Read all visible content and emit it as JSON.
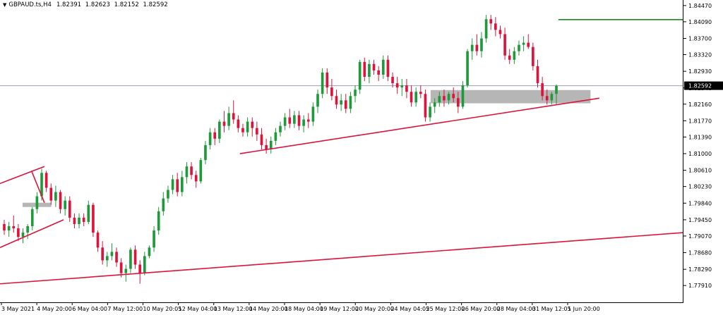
{
  "header": {
    "dropdown_icon": "triangle-down-icon",
    "symbol": "GBPAUD.ts,H4",
    "open": "1.82391",
    "high": "1.82623",
    "low": "1.82152",
    "close": "1.82592"
  },
  "colors": {
    "bull": "#1e9a3a",
    "bear": "#dc143c",
    "trendline": "#dc143c",
    "zone": "#a9a9a9",
    "resistance": "#1a8a1a",
    "price_line": "#9aa0b4",
    "price_tag_bg": "#000000"
  },
  "chart_data": {
    "type": "candlestick",
    "title": "GBPAUD.ts,H4",
    "ohlc_header": {
      "open": 1.82391,
      "high": 1.82623,
      "low": 1.82152,
      "close": 1.82592
    },
    "current_price": 1.82592,
    "current_price_label": "1.82592",
    "ylim": [
      1.775,
      1.846
    ],
    "y_ticks": [
      "1.84470",
      "1.84090",
      "1.83700",
      "1.83320",
      "1.82930",
      "1.82540",
      "1.82160",
      "1.81770",
      "1.81390",
      "1.81000",
      "1.80610",
      "1.80230",
      "1.79840",
      "1.79450",
      "1.79070",
      "1.78680",
      "1.78290",
      "1.77910"
    ],
    "x_ticks": [
      "3 May 2021",
      "4 May 20:00",
      "6 May 04:00",
      "7 May 12:00",
      "10 May 20:05",
      "12 May 04:00",
      "13 May 12:00",
      "14 May 20:00",
      "18 May 04:00",
      "19 May 12:00",
      "20 May 20:00",
      "24 May 04:05",
      "25 May 12:00",
      "26 May 20:00",
      "28 May 04:00",
      "31 May 12:05",
      "1 Jun 20:00"
    ],
    "candles": [
      [
        1.7935,
        1.7945,
        1.791,
        1.792
      ],
      [
        1.792,
        1.794,
        1.7905,
        1.793
      ],
      [
        1.793,
        1.7955,
        1.7915,
        1.7925
      ],
      [
        1.7925,
        1.7935,
        1.7895,
        1.7905
      ],
      [
        1.7905,
        1.7925,
        1.789,
        1.7915
      ],
      [
        1.7915,
        1.7935,
        1.79,
        1.793
      ],
      [
        1.793,
        1.7975,
        1.792,
        1.797
      ],
      [
        1.797,
        1.801,
        1.796,
        1.8
      ],
      [
        1.8,
        1.8065,
        1.799,
        1.8055
      ],
      [
        1.8055,
        1.806,
        1.801,
        1.802
      ],
      [
        1.802,
        1.803,
        1.798,
        1.799
      ],
      [
        1.799,
        1.8025,
        1.7975,
        1.801
      ],
      [
        1.801,
        1.8015,
        1.796,
        1.797
      ],
      [
        1.797,
        1.8,
        1.7955,
        1.799
      ],
      [
        1.799,
        1.8,
        1.794,
        1.795
      ],
      [
        1.795,
        1.796,
        1.7925,
        1.7935
      ],
      [
        1.7935,
        1.796,
        1.7925,
        1.795
      ],
      [
        1.795,
        1.796,
        1.793,
        1.794
      ],
      [
        1.794,
        1.799,
        1.7935,
        1.798
      ],
      [
        1.798,
        1.7985,
        1.7905,
        1.7915
      ],
      [
        1.7915,
        1.792,
        1.787,
        1.788
      ],
      [
        1.788,
        1.7895,
        1.784,
        1.785
      ],
      [
        1.785,
        1.787,
        1.7835,
        1.786
      ],
      [
        1.786,
        1.789,
        1.785,
        1.787
      ],
      [
        1.787,
        1.788,
        1.7835,
        1.7845
      ],
      [
        1.7845,
        1.7855,
        1.781,
        1.782
      ],
      [
        1.782,
        1.784,
        1.78,
        1.783
      ],
      [
        1.783,
        1.788,
        1.782,
        1.7875
      ],
      [
        1.7875,
        1.7885,
        1.783,
        1.784
      ],
      [
        1.784,
        1.785,
        1.7795,
        1.782
      ],
      [
        1.782,
        1.787,
        1.7815,
        1.786
      ],
      [
        1.786,
        1.7885,
        1.7855,
        1.788
      ],
      [
        1.788,
        1.793,
        1.787,
        1.792
      ],
      [
        1.792,
        1.7975,
        1.791,
        1.7965
      ],
      [
        1.7965,
        1.801,
        1.7955,
        1.7995
      ],
      [
        1.7995,
        1.8025,
        1.7985,
        1.8015
      ],
      [
        1.8015,
        1.805,
        1.8005,
        1.804
      ],
      [
        1.804,
        1.8055,
        1.8,
        1.801
      ],
      [
        1.801,
        1.806,
        1.8,
        1.8045
      ],
      [
        1.8045,
        1.808,
        1.803,
        1.807
      ],
      [
        1.807,
        1.808,
        1.804,
        1.805
      ],
      [
        1.805,
        1.806,
        1.802,
        1.8035
      ],
      [
        1.8035,
        1.809,
        1.803,
        1.8085
      ],
      [
        1.8085,
        1.813,
        1.8075,
        1.812
      ],
      [
        1.812,
        1.816,
        1.811,
        1.815
      ],
      [
        1.815,
        1.816,
        1.812,
        1.8135
      ],
      [
        1.8135,
        1.818,
        1.8125,
        1.8175
      ],
      [
        1.8175,
        1.82,
        1.815,
        1.8165
      ],
      [
        1.8165,
        1.821,
        1.8155,
        1.8195
      ],
      [
        1.8195,
        1.8225,
        1.817,
        1.818
      ],
      [
        1.818,
        1.819,
        1.815,
        1.816
      ],
      [
        1.816,
        1.817,
        1.814,
        1.815
      ],
      [
        1.815,
        1.8185,
        1.814,
        1.8175
      ],
      [
        1.8175,
        1.8185,
        1.814,
        1.816
      ],
      [
        1.816,
        1.8175,
        1.813,
        1.8145
      ],
      [
        1.8145,
        1.816,
        1.811,
        1.812
      ],
      [
        1.812,
        1.8135,
        1.81,
        1.811
      ],
      [
        1.811,
        1.814,
        1.81,
        1.813
      ],
      [
        1.813,
        1.816,
        1.812,
        1.815
      ],
      [
        1.815,
        1.8175,
        1.814,
        1.8165
      ],
      [
        1.8165,
        1.8195,
        1.8155,
        1.8185
      ],
      [
        1.8185,
        1.8205,
        1.816,
        1.817
      ],
      [
        1.817,
        1.82,
        1.816,
        1.819
      ],
      [
        1.819,
        1.82,
        1.8155,
        1.8165
      ],
      [
        1.8165,
        1.819,
        1.815,
        1.818
      ],
      [
        1.818,
        1.8195,
        1.816,
        1.8175
      ],
      [
        1.8175,
        1.822,
        1.8165,
        1.821
      ],
      [
        1.821,
        1.825,
        1.8195,
        1.824
      ],
      [
        1.824,
        1.83,
        1.823,
        1.829
      ],
      [
        1.829,
        1.83,
        1.824,
        1.8255
      ],
      [
        1.8255,
        1.8275,
        1.8225,
        1.8235
      ],
      [
        1.8235,
        1.825,
        1.8205,
        1.8215
      ],
      [
        1.8215,
        1.824,
        1.82,
        1.8225
      ],
      [
        1.8225,
        1.824,
        1.8195,
        1.8205
      ],
      [
        1.8205,
        1.8245,
        1.8195,
        1.8235
      ],
      [
        1.8235,
        1.826,
        1.822,
        1.825
      ],
      [
        1.825,
        1.832,
        1.824,
        1.8315
      ],
      [
        1.8315,
        1.8325,
        1.827,
        1.828
      ],
      [
        1.828,
        1.832,
        1.8265,
        1.831
      ],
      [
        1.831,
        1.832,
        1.8285,
        1.8295
      ],
      [
        1.8295,
        1.8305,
        1.827,
        1.8285
      ],
      [
        1.8285,
        1.833,
        1.8275,
        1.832
      ],
      [
        1.832,
        1.833,
        1.827,
        1.828
      ],
      [
        1.828,
        1.829,
        1.8255,
        1.8265
      ],
      [
        1.8265,
        1.828,
        1.824,
        1.8255
      ],
      [
        1.8255,
        1.8275,
        1.8235,
        1.826
      ],
      [
        1.826,
        1.8275,
        1.823,
        1.8245
      ],
      [
        1.8245,
        1.826,
        1.821,
        1.822
      ],
      [
        1.822,
        1.8255,
        1.821,
        1.8245
      ],
      [
        1.8245,
        1.826,
        1.823,
        1.824
      ],
      [
        1.824,
        1.825,
        1.8175,
        1.8185
      ],
      [
        1.8185,
        1.822,
        1.8175,
        1.821
      ],
      [
        1.821,
        1.823,
        1.8195,
        1.822
      ],
      [
        1.822,
        1.8245,
        1.821,
        1.8235
      ],
      [
        1.8235,
        1.825,
        1.821,
        1.8225
      ],
      [
        1.8225,
        1.8245,
        1.8215,
        1.824
      ],
      [
        1.824,
        1.8255,
        1.822,
        1.823
      ],
      [
        1.823,
        1.8245,
        1.8195,
        1.821
      ],
      [
        1.821,
        1.827,
        1.8205,
        1.826
      ],
      [
        1.826,
        1.8345,
        1.8255,
        1.834
      ],
      [
        1.834,
        1.837,
        1.832,
        1.8355
      ],
      [
        1.8355,
        1.838,
        1.833,
        1.834
      ],
      [
        1.834,
        1.8385,
        1.8325,
        1.837
      ],
      [
        1.837,
        1.8425,
        1.836,
        1.8415
      ],
      [
        1.8415,
        1.8425,
        1.839,
        1.8405
      ],
      [
        1.8405,
        1.842,
        1.8375,
        1.839
      ],
      [
        1.839,
        1.84,
        1.837,
        1.838
      ],
      [
        1.838,
        1.8395,
        1.832,
        1.833
      ],
      [
        1.833,
        1.8345,
        1.831,
        1.832
      ],
      [
        1.832,
        1.835,
        1.831,
        1.834
      ],
      [
        1.834,
        1.8365,
        1.833,
        1.8355
      ],
      [
        1.8355,
        1.8375,
        1.834,
        1.836
      ],
      [
        1.836,
        1.838,
        1.8345,
        1.835
      ],
      [
        1.835,
        1.836,
        1.8295,
        1.8305
      ],
      [
        1.8305,
        1.832,
        1.8255,
        1.8265
      ],
      [
        1.8265,
        1.828,
        1.8225,
        1.8235
      ],
      [
        1.8235,
        1.825,
        1.8215,
        1.8225
      ],
      [
        1.8225,
        1.8245,
        1.8215,
        1.824
      ],
      [
        1.824,
        1.8262,
        1.8215,
        1.8259
      ]
    ],
    "zones": [
      {
        "name": "small-support-zone",
        "from": 1.7975,
        "to": 1.7985,
        "x0": 0.033,
        "x1": 0.075
      },
      {
        "name": "support-zone",
        "from": 1.8218,
        "to": 1.8249,
        "x0": 0.63,
        "x1": 0.864
      }
    ],
    "trendlines": [
      {
        "name": "rising-support-line",
        "points": [
          [
            0.351,
            1.81
          ],
          [
            0.877,
            1.823
          ]
        ]
      },
      {
        "name": "lower-trendline",
        "points": [
          [
            0.0,
            1.7795
          ],
          [
            1.0,
            1.7915
          ]
        ]
      },
      {
        "name": "channel-upper-line",
        "points": [
          [
            0.0,
            1.803
          ],
          [
            0.065,
            1.807
          ]
        ]
      },
      {
        "name": "channel-lower-line",
        "points": [
          [
            0.0,
            1.788
          ],
          [
            0.093,
            1.7945
          ]
        ]
      },
      {
        "name": "flag-pole-line",
        "points": [
          [
            0.046,
            1.806
          ],
          [
            0.065,
            1.7985
          ]
        ]
      }
    ],
    "resistance_level": {
      "value": 1.8414,
      "x0": 0.817,
      "x1": 1.0
    },
    "grid": false,
    "legend": "none"
  }
}
